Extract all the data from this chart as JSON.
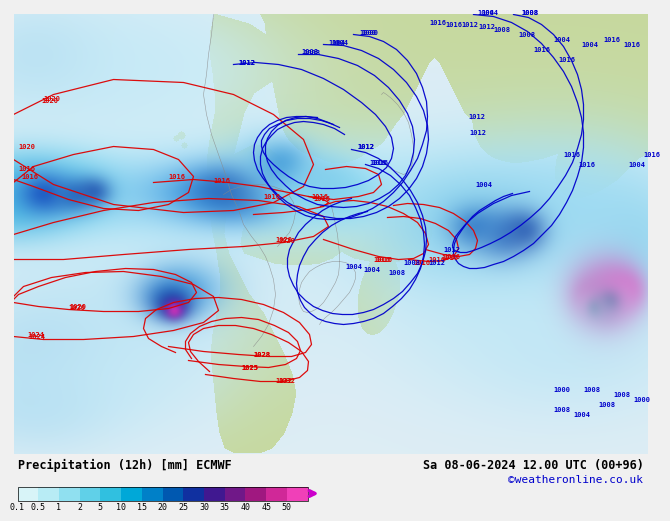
{
  "title_left": "Precipitation (12h) [mm] ECMWF",
  "title_right": "Sa 08-06-2024 12.00 UTC (00+96)",
  "credit": "©weatheronline.co.uk",
  "colorbar_labels": [
    "0.1",
    "0.5",
    "1",
    "2",
    "5",
    "10",
    "15",
    "20",
    "25",
    "30",
    "35",
    "40",
    "45",
    "50"
  ],
  "colorbar_colors": [
    "#d8f4f8",
    "#b8ecf5",
    "#90e0f0",
    "#60d0e8",
    "#30c0e0",
    "#00a8d8",
    "#0080c8",
    "#0058b0",
    "#1030a0",
    "#401890",
    "#701888",
    "#a01880",
    "#d02898",
    "#f040b8"
  ],
  "ocean_color": "#ddeef5",
  "land_color": "#c8d8a0",
  "gray_border": "#aaaaaa",
  "bg_bottom": "#f0f0f0",
  "text_color": "#000000",
  "credit_color": "#0000cc",
  "red_line": "#dd0000",
  "blue_line": "#0000cc",
  "arrow_tip_color": "#cc00cc",
  "prec_light_cyan": "#c0eaf8",
  "prec_cyan": "#80d8f0",
  "prec_blue_light": "#50c0e8",
  "prec_blue_mid": "#2090d0",
  "prec_blue": "#1060b8",
  "prec_dark_blue": "#1030a0",
  "prec_purple": "#6018a0",
  "prec_magenta": "#c020a0",
  "prec_pink": "#e840c0"
}
